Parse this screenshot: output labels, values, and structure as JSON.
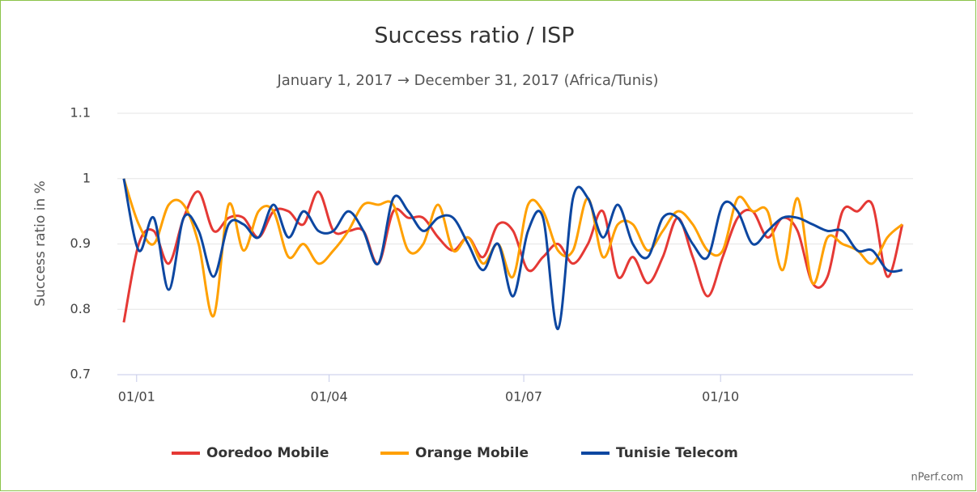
{
  "chart_data": {
    "type": "line",
    "title": "Success ratio / ISP",
    "subtitle": "January 1, 2017 → December 31, 2017 (Africa/Tunis)",
    "y_label": "Success ratio in %",
    "credit": "nPerf.com",
    "x": [
      "26/12",
      "02/01",
      "09/01",
      "16/01",
      "23/01",
      "30/01",
      "06/02",
      "13/02",
      "20/02",
      "27/02",
      "06/03",
      "13/03",
      "20/03",
      "27/03",
      "03/04",
      "10/04",
      "17/04",
      "24/04",
      "01/05",
      "08/05",
      "15/05",
      "22/05",
      "29/05",
      "05/06",
      "12/06",
      "19/06",
      "26/06",
      "03/07",
      "10/07",
      "17/07",
      "24/07",
      "31/07",
      "07/08",
      "14/08",
      "21/08",
      "28/08",
      "04/09",
      "11/09",
      "18/09",
      "25/09",
      "02/10",
      "09/10",
      "16/10",
      "23/10",
      "30/10",
      "06/11",
      "13/11",
      "20/11",
      "27/11",
      "04/12",
      "11/12",
      "18/12",
      "25/12"
    ],
    "series": [
      {
        "name": "Ooredoo Mobile",
        "color": "#e53935",
        "values": [
          0.78,
          0.9,
          0.92,
          0.87,
          0.94,
          0.98,
          0.92,
          0.94,
          0.94,
          0.91,
          0.95,
          0.95,
          0.93,
          0.98,
          0.92,
          0.92,
          0.92,
          0.87,
          0.95,
          0.94,
          0.94,
          0.91,
          0.89,
          0.91,
          0.88,
          0.93,
          0.92,
          0.86,
          0.88,
          0.9,
          0.87,
          0.9,
          0.95,
          0.85,
          0.88,
          0.84,
          0.88,
          0.94,
          0.88,
          0.82,
          0.88,
          0.94,
          0.95,
          0.91,
          0.94,
          0.92,
          0.84,
          0.85,
          0.95,
          0.95,
          0.96,
          0.85,
          0.93
        ]
      },
      {
        "name": "Orange Mobile",
        "color": "#ffa000",
        "values": [
          1.0,
          0.93,
          0.9,
          0.96,
          0.96,
          0.9,
          0.79,
          0.96,
          0.89,
          0.95,
          0.95,
          0.88,
          0.9,
          0.87,
          0.89,
          0.92,
          0.96,
          0.96,
          0.96,
          0.89,
          0.9,
          0.96,
          0.89,
          0.91,
          0.87,
          0.9,
          0.85,
          0.96,
          0.95,
          0.89,
          0.89,
          0.97,
          0.88,
          0.93,
          0.93,
          0.89,
          0.92,
          0.95,
          0.93,
          0.89,
          0.89,
          0.97,
          0.95,
          0.95,
          0.86,
          0.97,
          0.84,
          0.91,
          0.9,
          0.89,
          0.87,
          0.91,
          0.93
        ]
      },
      {
        "name": "Tunisie Telecom",
        "color": "#0d47a1",
        "values": [
          1.0,
          0.89,
          0.94,
          0.83,
          0.94,
          0.92,
          0.85,
          0.93,
          0.93,
          0.91,
          0.96,
          0.91,
          0.95,
          0.92,
          0.92,
          0.95,
          0.92,
          0.87,
          0.97,
          0.95,
          0.92,
          0.94,
          0.94,
          0.9,
          0.86,
          0.9,
          0.82,
          0.92,
          0.94,
          0.77,
          0.97,
          0.97,
          0.91,
          0.96,
          0.9,
          0.88,
          0.94,
          0.94,
          0.9,
          0.88,
          0.96,
          0.95,
          0.9,
          0.92,
          0.94,
          0.94,
          0.93,
          0.92,
          0.92,
          0.89,
          0.89,
          0.86,
          0.86
        ]
      }
    ],
    "xlim": [
      "23/12",
      "30/12"
    ],
    "xticks": [
      "01/01",
      "01/04",
      "01/07",
      "01/10"
    ],
    "ylim": [
      0.7,
      1.1
    ],
    "yticks": [
      0.7,
      0.8,
      0.9,
      1,
      1.1
    ],
    "grid": true,
    "legend": "bottom"
  }
}
